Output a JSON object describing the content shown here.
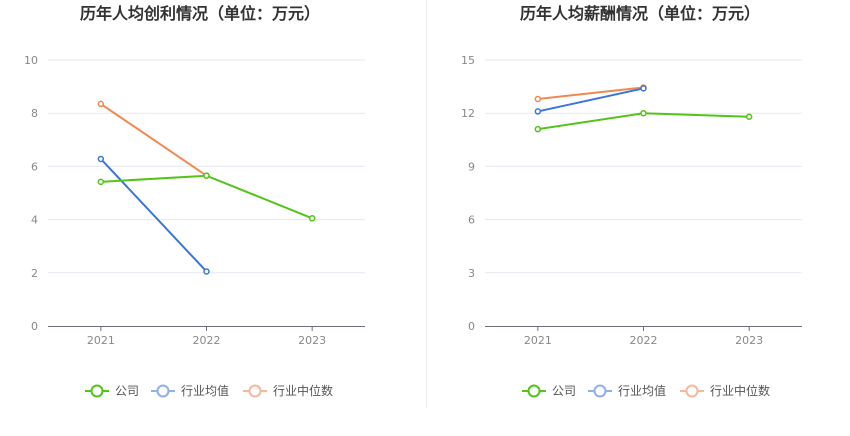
{
  "chart_data": [
    {
      "type": "line",
      "title": "历年人均创利情况（单位：万元）",
      "categories": [
        "2021",
        "2022",
        "2023"
      ],
      "ylim": [
        0,
        10
      ],
      "yticks": [
        0,
        2,
        4,
        6,
        8,
        10
      ],
      "ytick_labels": [
        "0",
        "2",
        "4",
        "6",
        "8",
        "10"
      ],
      "grid": true,
      "legend_position": "bottom-center",
      "series": [
        {
          "name": "公司",
          "color": "#52c41a",
          "values": [
            5.42,
            5.65,
            4.05
          ]
        },
        {
          "name": "行业均值",
          "color": "#3a75db",
          "values": [
            6.28,
            2.05,
            null
          ]
        },
        {
          "name": "行业中位数",
          "color": "#f0894f",
          "values": [
            8.35,
            5.65,
            null
          ]
        }
      ]
    },
    {
      "type": "line",
      "title": "历年人均薪酬情况（单位：万元）",
      "categories": [
        "2021",
        "2022",
        "2023"
      ],
      "ylim": [
        0,
        15
      ],
      "yticks": [
        0,
        3,
        6,
        9,
        12,
        15
      ],
      "ytick_labels": [
        "0",
        "3",
        "6",
        "9",
        "12",
        "15"
      ],
      "grid": true,
      "legend_position": "bottom-center",
      "series": [
        {
          "name": "公司",
          "color": "#52c41a",
          "values": [
            11.1,
            12.0,
            11.8
          ]
        },
        {
          "name": "行业均值",
          "color": "#3a75db",
          "values": [
            12.1,
            13.4,
            null
          ]
        },
        {
          "name": "行业中位数",
          "color": "#f0894f",
          "values": [
            12.8,
            13.45,
            null
          ]
        }
      ]
    }
  ],
  "legend_colors": [
    "#52c41a",
    "#8fb0ec",
    "#f5b99a"
  ]
}
